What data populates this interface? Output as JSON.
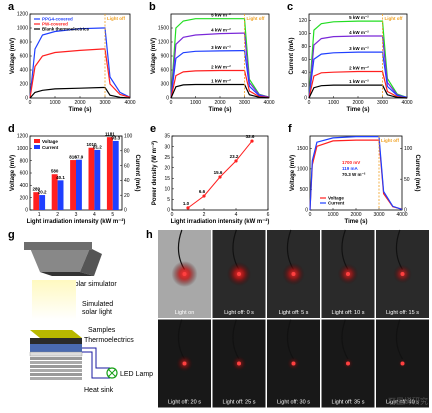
{
  "panels": {
    "a": {
      "label": "a",
      "xlabel": "Time (s)",
      "ylabel": "Voltage (mV)",
      "light_off": "Light off",
      "legend": [
        "PPG4-covered",
        "PW-covered",
        "Blank thermoelectrics"
      ],
      "xticks": [
        "0",
        "1000",
        "2000",
        "3000",
        "4000"
      ],
      "yticks": [
        "0",
        "200",
        "400",
        "600",
        "800",
        "1000",
        "1200"
      ]
    },
    "b": {
      "label": "b",
      "xlabel": "Time (s)",
      "ylabel": "Voltage (mV)",
      "light_off": "Light off",
      "xticks": [
        "0",
        "1000",
        "2000",
        "3000",
        "4000"
      ],
      "yticks": [
        "0",
        "300",
        "600",
        "900",
        "1200",
        "1500"
      ],
      "levels": [
        "1 kW m⁻²",
        "2 kW m⁻²",
        "3 kW m⁻²",
        "4 kW m⁻²",
        "5 kW m⁻²"
      ]
    },
    "c": {
      "label": "c",
      "xlabel": "Time (s)",
      "ylabel": "Current (mA)",
      "light_off": "Light off",
      "xticks": [
        "0",
        "1000",
        "2000",
        "3000",
        "4000"
      ],
      "yticks": [
        "0",
        "20",
        "40",
        "60",
        "80",
        "100",
        "120"
      ],
      "levels": [
        "1 kW m⁻²",
        "2 kW m⁻²",
        "3 kW m⁻²",
        "4 kW m⁻²",
        "5 kW m⁻²"
      ]
    },
    "d": {
      "label": "d",
      "xlabel": "Light irradiation intensity (kW m⁻²)",
      "ylabel": "Voltage (mV)",
      "ylabel2": "Current (mA)",
      "legend": [
        "Voltage",
        "Current"
      ],
      "categories": [
        "1",
        "2",
        "3",
        "4",
        "5"
      ],
      "yticks": [
        "0",
        "200",
        "400",
        "600",
        "800",
        "1000",
        "1200"
      ],
      "y2ticks": [
        "0",
        "20",
        "40",
        "60",
        "80",
        "100"
      ]
    },
    "e": {
      "label": "e",
      "xlabel": "Light irradiation intensity (kW m⁻²)",
      "ylabel": "Power density (W m⁻²)",
      "xticks": [
        "0",
        "2",
        "4",
        "6"
      ],
      "yticks": [
        "0",
        "5",
        "10",
        "15",
        "20",
        "25",
        "30",
        "35"
      ]
    },
    "f": {
      "label": "f",
      "xlabel": "Time (s)",
      "ylabel": "Voltage (mV)",
      "ylabel2": "Current (mA)",
      "light_off": "Light off",
      "legend": [
        "Voltage",
        "Current"
      ],
      "annot": [
        "1700 mV",
        "119 mA",
        "70.3 W m⁻²"
      ],
      "xticks": [
        "0",
        "1000",
        "2000",
        "3000",
        "4000"
      ],
      "yticks": [
        "0",
        "500",
        "1000",
        "1500"
      ],
      "y2ticks": [
        "0",
        "50",
        "100"
      ]
    },
    "g": {
      "label": "g",
      "labels": [
        "Solar simulator",
        "Simulated",
        "solar light",
        "Samples",
        "Thermoelectrics",
        "LED Lamp",
        "Heat sink"
      ]
    },
    "h": {
      "label": "h",
      "captions": [
        "Light on",
        "Light off: 0 s",
        "Light off: 5 s",
        "Light off: 10 s",
        "Light off: 15 s",
        "Light off: 20 s",
        "Light off: 25 s",
        "Light off: 30 s",
        "Light off: 35 s",
        "Light off: 40 s"
      ]
    }
  },
  "watermark": "石墨烯研究",
  "colors": {
    "blue": "#1f3fff",
    "red": "#ff2020",
    "green": "#22dd22",
    "purple": "#7a28d8",
    "black": "#000000",
    "orange": "#f0a020"
  },
  "chart_data": [
    {
      "type": "line",
      "panel": "a",
      "x": [
        0,
        200,
        500,
        1000,
        2000,
        2900,
        3000,
        3200,
        3600,
        4000
      ],
      "series": [
        {
          "name": "PPG4-covered",
          "values": [
            0,
            700,
            900,
            950,
            990,
            1000,
            1000,
            300,
            80,
            10
          ]
        },
        {
          "name": "PW-covered",
          "values": [
            0,
            450,
            600,
            650,
            680,
            700,
            700,
            200,
            50,
            10
          ]
        },
        {
          "name": "Blank thermoelectrics",
          "values": [
            0,
            80,
            110,
            130,
            140,
            150,
            150,
            40,
            10,
            0
          ]
        }
      ],
      "xlim": [
        0,
        4000
      ],
      "ylim": [
        0,
        1200
      ]
    },
    {
      "type": "line",
      "panel": "b",
      "x": [
        0,
        200,
        500,
        1000,
        2000,
        2900,
        3000,
        3200,
        3600,
        4000
      ],
      "series": [
        {
          "name": "5 kW m⁻²",
          "values": [
            0,
            1500,
            1650,
            1700,
            1700,
            1700,
            1700,
            400,
            80,
            20
          ]
        },
        {
          "name": "4 kW m⁻²",
          "values": [
            0,
            1150,
            1300,
            1350,
            1380,
            1390,
            1390,
            330,
            70,
            20
          ]
        },
        {
          "name": "3 kW m⁻²",
          "values": [
            0,
            850,
            970,
            1000,
            1010,
            1015,
            1015,
            250,
            50,
            15
          ]
        },
        {
          "name": "2 kW m⁻²",
          "values": [
            0,
            480,
            560,
            580,
            590,
            590,
            590,
            150,
            30,
            10
          ]
        },
        {
          "name": "1 kW m⁻²",
          "values": [
            0,
            240,
            280,
            289,
            289,
            289,
            289,
            70,
            15,
            5
          ]
        }
      ],
      "xlim": [
        0,
        4000
      ],
      "ylim": [
        0,
        1800
      ]
    },
    {
      "type": "line",
      "panel": "c",
      "x": [
        0,
        200,
        500,
        1000,
        2000,
        2900,
        3000,
        3200,
        3600,
        4000
      ],
      "series": [
        {
          "name": "5 kW m⁻²",
          "values": [
            0,
            105,
            115,
            118,
            119,
            119,
            119,
            30,
            6,
            1
          ]
        },
        {
          "name": "4 kW m⁻²",
          "values": [
            0,
            82,
            92,
            95,
            96,
            96,
            96,
            24,
            5,
            1
          ]
        },
        {
          "name": "3 kW m⁻²",
          "values": [
            0,
            60,
            68,
            70,
            71,
            71,
            71,
            18,
            4,
            1
          ]
        },
        {
          "name": "2 kW m⁻²",
          "values": [
            0,
            34,
            39,
            40,
            41,
            41,
            41,
            10,
            2,
            0
          ]
        },
        {
          "name": "1 kW m⁻²",
          "values": [
            0,
            16,
            19,
            20,
            20,
            20,
            20,
            5,
            1,
            0
          ]
        }
      ],
      "xlim": [
        0,
        4000
      ],
      "ylim": [
        0,
        130
      ]
    },
    {
      "type": "bar",
      "panel": "d",
      "categories": [
        "1",
        "2",
        "3",
        "4",
        "5"
      ],
      "series": [
        {
          "name": "Voltage",
          "values": [
            289,
            580,
            810,
            1010,
            1181
          ]
        },
        {
          "name": "Current",
          "values": [
            20.2,
            40.1,
            67.9,
            81.2,
            93.3
          ]
        }
      ],
      "data_labels_voltage": [
        "289",
        "580",
        "810",
        "1010",
        "1181"
      ],
      "data_labels_current": [
        "20.2",
        "40.1",
        "67.9",
        "81.2",
        "93.3"
      ],
      "ylim": [
        0,
        1200
      ],
      "y2lim": [
        0,
        100
      ]
    },
    {
      "type": "line",
      "panel": "e",
      "x": [
        1,
        2,
        3,
        4,
        5
      ],
      "values": [
        1.0,
        6.6,
        15.6,
        23.2,
        32.6
      ],
      "data_labels": [
        "1.0",
        "6.6",
        "15.6",
        "23.2",
        "32.6"
      ],
      "xlim": [
        0,
        6
      ],
      "ylim": [
        0,
        35
      ]
    },
    {
      "type": "line",
      "panel": "f",
      "x": [
        0,
        100,
        300,
        1000,
        2000,
        2900,
        3000,
        3200,
        3600,
        4000
      ],
      "series": [
        {
          "name": "Voltage",
          "values": [
            0,
            1100,
            1550,
            1680,
            1700,
            1700,
            1700,
            400,
            80,
            20
          ]
        },
        {
          "name": "Current",
          "values": [
            0,
            80,
            110,
            117,
            119,
            119,
            119,
            30,
            6,
            1
          ]
        }
      ],
      "xlim": [
        0,
        4000
      ],
      "ylim": [
        0,
        1800
      ],
      "y2lim": [
        0,
        120
      ]
    }
  ]
}
